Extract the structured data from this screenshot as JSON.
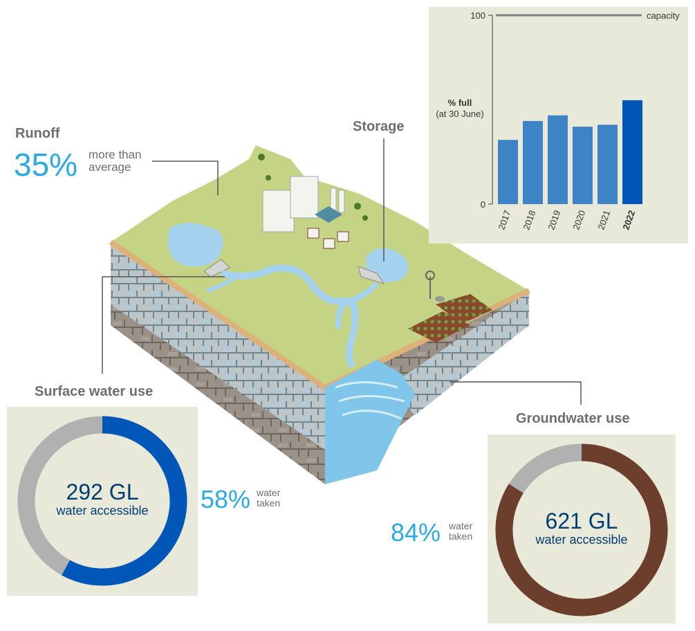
{
  "runoff": {
    "heading": "Runoff",
    "percent": "35%",
    "note_line1": "more than",
    "note_line2": "average"
  },
  "storage": {
    "heading": "Storage"
  },
  "surface": {
    "heading": "Surface water use",
    "total": "292 GL",
    "total_label": "water accessible",
    "percent": "58%",
    "note_line1": "water",
    "note_line2": "taken"
  },
  "ground": {
    "heading": "Groundwater use",
    "total": "621 GL",
    "total_label": "water accessible",
    "percent": "84%",
    "note_line1": "water",
    "note_line2": "taken"
  },
  "chart_data": [
    {
      "type": "bar",
      "categories": [
        "2017",
        "2018",
        "2019",
        "2020",
        "2021",
        "2022"
      ],
      "values": [
        34,
        44,
        47,
        41,
        42,
        55
      ],
      "highlight": "2022",
      "ylabel_line1": "% full",
      "ylabel_line2": "(at 30 June)",
      "ylim": [
        0,
        100
      ],
      "yticks": [
        "0",
        "100"
      ],
      "reference_line": {
        "value": 100,
        "label": "capacity"
      },
      "colors": {
        "bar": "#3d84c6",
        "highlight": "#0057b7",
        "background": "#e9e9da"
      }
    },
    {
      "type": "pie",
      "name": "surface-water-use",
      "values": [
        58,
        42
      ],
      "colors": [
        "#0057b7",
        "#b1b1b1"
      ]
    },
    {
      "type": "pie",
      "name": "groundwater-use",
      "values": [
        84,
        16
      ],
      "colors": [
        "#6b3f2b",
        "#b1b1b1"
      ]
    }
  ]
}
